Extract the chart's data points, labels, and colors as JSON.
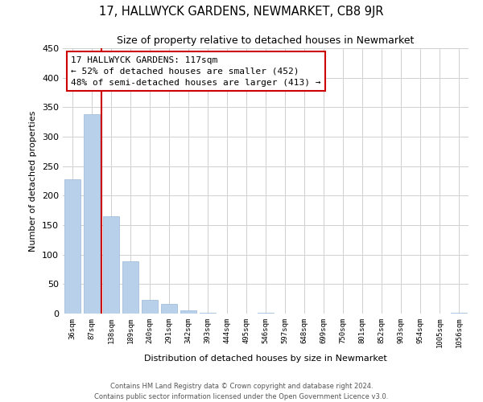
{
  "title": "17, HALLWYCK GARDENS, NEWMARKET, CB8 9JR",
  "subtitle": "Size of property relative to detached houses in Newmarket",
  "xlabel": "Distribution of detached houses by size in Newmarket",
  "ylabel": "Number of detached properties",
  "categories": [
    "36sqm",
    "87sqm",
    "138sqm",
    "189sqm",
    "240sqm",
    "291sqm",
    "342sqm",
    "393sqm",
    "444sqm",
    "495sqm",
    "546sqm",
    "597sqm",
    "648sqm",
    "699sqm",
    "750sqm",
    "801sqm",
    "852sqm",
    "903sqm",
    "954sqm",
    "1005sqm",
    "1056sqm"
  ],
  "values": [
    228,
    338,
    165,
    89,
    23,
    17,
    6,
    1,
    0,
    0,
    1,
    0,
    0,
    0,
    0,
    0,
    0,
    0,
    0,
    0,
    2
  ],
  "bar_color": "#b8d0ea",
  "bar_edge_color": "#9ab8d8",
  "vline_color": "#cc0000",
  "annotation_title": "17 HALLWYCK GARDENS: 117sqm",
  "annotation_line1": "← 52% of detached houses are smaller (452)",
  "annotation_line2": "48% of semi-detached houses are larger (413) →",
  "box_edge_color": "#cc0000",
  "ylim": [
    0,
    450
  ],
  "yticks": [
    0,
    50,
    100,
    150,
    200,
    250,
    300,
    350,
    400,
    450
  ],
  "footer1": "Contains HM Land Registry data © Crown copyright and database right 2024.",
  "footer2": "Contains public sector information licensed under the Open Government Licence v3.0.",
  "figsize": [
    6.0,
    5.0
  ],
  "dpi": 100
}
